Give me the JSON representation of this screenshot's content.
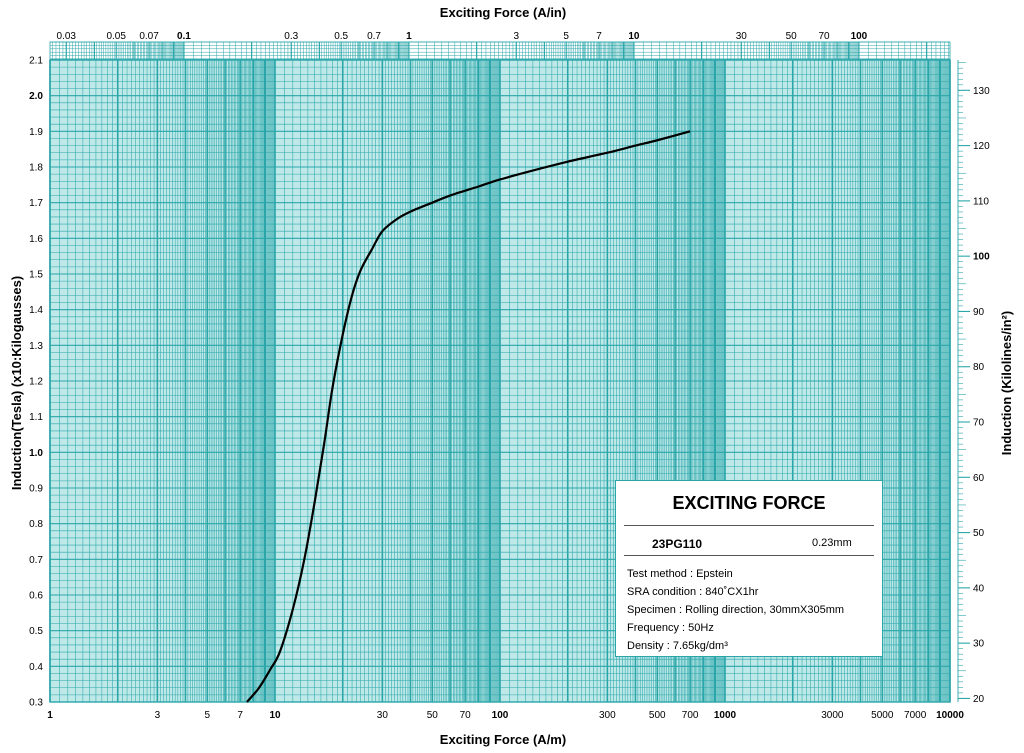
{
  "chart_data": {
    "type": "line",
    "title": "",
    "xlabel": "Exciting Force (A/m)",
    "x2label": "Exciting Force (A/in)",
    "ylabel": "Induction(Tesla) (x10:Kilogausses)",
    "y2label": "Induction (Kilolines/in²)",
    "x_scale": "log",
    "xlim": [
      1,
      10000
    ],
    "ylim": [
      0.3,
      2.1
    ],
    "grid": true,
    "x_ticks": [
      {
        "value": 1,
        "label": "1",
        "bold": true
      },
      {
        "value": 3,
        "label": "3",
        "bold": false
      },
      {
        "value": 5,
        "label": "5",
        "bold": false
      },
      {
        "value": 7,
        "label": "7",
        "bold": false
      },
      {
        "value": 10,
        "label": "10",
        "bold": true
      },
      {
        "value": 30,
        "label": "30",
        "bold": false
      },
      {
        "value": 50,
        "label": "50",
        "bold": false
      },
      {
        "value": 70,
        "label": "70",
        "bold": false
      },
      {
        "value": 100,
        "label": "100",
        "bold": true
      },
      {
        "value": 300,
        "label": "300",
        "bold": false
      },
      {
        "value": 500,
        "label": "500",
        "bold": false
      },
      {
        "value": 700,
        "label": "700",
        "bold": false
      },
      {
        "value": 1000,
        "label": "1000",
        "bold": true
      },
      {
        "value": 3000,
        "label": "3000",
        "bold": false
      },
      {
        "value": 5000,
        "label": "5000",
        "bold": false
      },
      {
        "value": 7000,
        "label": "7000",
        "bold": false
      },
      {
        "value": 10000,
        "label": "10000",
        "bold": true
      }
    ],
    "x2_ticks": [
      {
        "value": 0.03,
        "label": "0.03",
        "bold": false
      },
      {
        "value": 0.05,
        "label": "0.05",
        "bold": false
      },
      {
        "value": 0.07,
        "label": "0.07",
        "bold": false
      },
      {
        "value": 0.1,
        "label": "0.1",
        "bold": true
      },
      {
        "value": 0.3,
        "label": "0.3",
        "bold": false
      },
      {
        "value": 0.5,
        "label": "0.5",
        "bold": false
      },
      {
        "value": 0.7,
        "label": "0.7",
        "bold": false
      },
      {
        "value": 1,
        "label": "1",
        "bold": true
      },
      {
        "value": 3,
        "label": "3",
        "bold": false
      },
      {
        "value": 5,
        "label": "5",
        "bold": false
      },
      {
        "value": 7,
        "label": "7",
        "bold": false
      },
      {
        "value": 10,
        "label": "10",
        "bold": true
      },
      {
        "value": 30,
        "label": "30",
        "bold": false
      },
      {
        "value": 50,
        "label": "50",
        "bold": false
      },
      {
        "value": 70,
        "label": "70",
        "bold": false
      },
      {
        "value": 100,
        "label": "100",
        "bold": true
      }
    ],
    "y_ticks": [
      {
        "value": 0.3,
        "label": "0.3",
        "bold": false
      },
      {
        "value": 0.4,
        "label": "0.4",
        "bold": false
      },
      {
        "value": 0.5,
        "label": "0.5",
        "bold": false
      },
      {
        "value": 0.6,
        "label": "0.6",
        "bold": false
      },
      {
        "value": 0.7,
        "label": "0.7",
        "bold": false
      },
      {
        "value": 0.8,
        "label": "0.8",
        "bold": false
      },
      {
        "value": 0.9,
        "label": "0.9",
        "bold": false
      },
      {
        "value": 1.0,
        "label": "1.0",
        "bold": true
      },
      {
        "value": 1.1,
        "label": "1.1",
        "bold": false
      },
      {
        "value": 1.2,
        "label": "1.2",
        "bold": false
      },
      {
        "value": 1.3,
        "label": "1.3",
        "bold": false
      },
      {
        "value": 1.4,
        "label": "1.4",
        "bold": false
      },
      {
        "value": 1.5,
        "label": "1.5",
        "bold": false
      },
      {
        "value": 1.6,
        "label": "1.6",
        "bold": false
      },
      {
        "value": 1.7,
        "label": "1.7",
        "bold": false
      },
      {
        "value": 1.8,
        "label": "1.8",
        "bold": false
      },
      {
        "value": 1.9,
        "label": "1.9",
        "bold": false
      },
      {
        "value": 2.0,
        "label": "2.0",
        "bold": true
      },
      {
        "value": 2.1,
        "label": "2.1",
        "bold": false
      }
    ],
    "y2_ticks": [
      {
        "value": 20,
        "label": "20",
        "bold": false
      },
      {
        "value": 30,
        "label": "30",
        "bold": false
      },
      {
        "value": 40,
        "label": "40",
        "bold": false
      },
      {
        "value": 50,
        "label": "50",
        "bold": false
      },
      {
        "value": 60,
        "label": "60",
        "bold": false
      },
      {
        "value": 70,
        "label": "70",
        "bold": false
      },
      {
        "value": 80,
        "label": "80",
        "bold": false
      },
      {
        "value": 90,
        "label": "90",
        "bold": false
      },
      {
        "value": 100,
        "label": "100",
        "bold": true
      },
      {
        "value": 110,
        "label": "110",
        "bold": false
      },
      {
        "value": 120,
        "label": "120",
        "bold": false
      },
      {
        "value": 130,
        "label": "130",
        "bold": false
      }
    ],
    "series": [
      {
        "color": "#000000",
        "x": [
          7.5,
          8.5,
          9.5,
          10.5,
          12,
          13.5,
          15,
          16.5,
          18,
          20,
          22,
          24,
          27,
          30,
          35,
          40,
          50,
          60,
          80,
          100,
          150,
          200,
          300,
          400,
          500,
          700
        ],
        "y": [
          0.3,
          0.34,
          0.39,
          0.44,
          0.56,
          0.7,
          0.86,
          1.02,
          1.18,
          1.33,
          1.44,
          1.51,
          1.57,
          1.62,
          1.655,
          1.675,
          1.7,
          1.72,
          1.745,
          1.765,
          1.795,
          1.815,
          1.84,
          1.86,
          1.875,
          1.9
        ]
      }
    ]
  },
  "legend": {
    "title": "EXCITING FORCE",
    "grade": "23PG110",
    "thickness": "0.23mm",
    "lines": [
      "Test method : Epstein",
      "SRA condition : 840˚CX1hr",
      "Specimen : Rolling direction, 30mmX305mm",
      "Frequency : 50Hz",
      "Density : 7.65kg/dm³"
    ]
  },
  "colors": {
    "grid": "#2aa6a9",
    "grid_fill": "#bfe9e9",
    "curve": "#000000"
  }
}
